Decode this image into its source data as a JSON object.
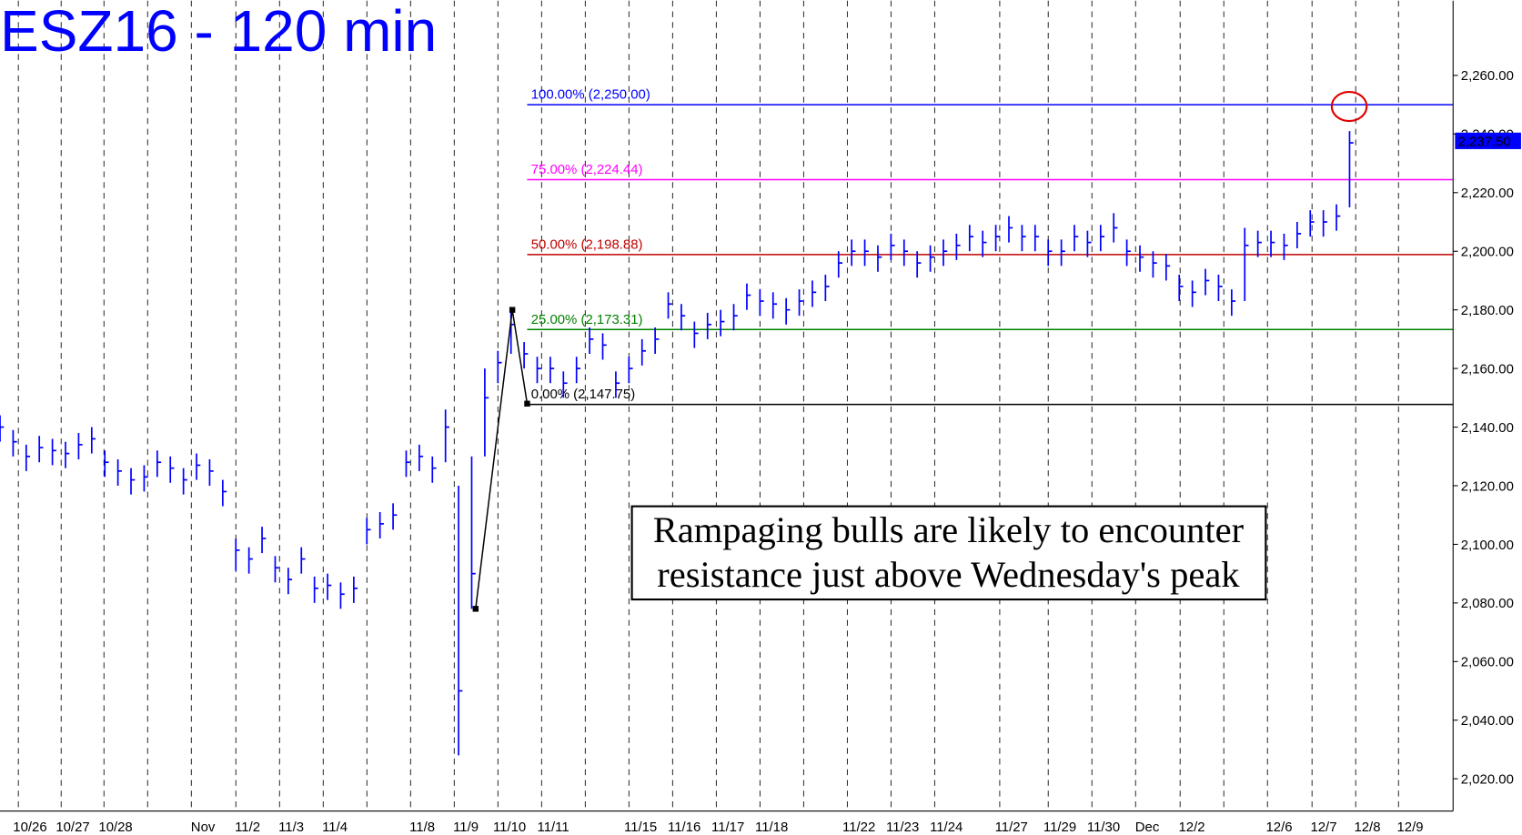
{
  "chart_data": {
    "type": "ohlc",
    "title": "ESZ16 - 120 min",
    "color": "#0000ff",
    "annotation": [
      "Rampaging bulls are likely to encounter",
      "resistance just above Wednesday's peak"
    ],
    "x": [
      0,
      3,
      6,
      9,
      12,
      15,
      18,
      21,
      24,
      27,
      30,
      33,
      36,
      39,
      42,
      45,
      48,
      51,
      54,
      57,
      60,
      63,
      66,
      69,
      72,
      75,
      78,
      81,
      84,
      87,
      90,
      93,
      96,
      99,
      102,
      105,
      108,
      111,
      114,
      117,
      120,
      123,
      126,
      129,
      132,
      135,
      138,
      141,
      144,
      147,
      150,
      153,
      156,
      159,
      162,
      165,
      168,
      171,
      174,
      177,
      180,
      183,
      186,
      189,
      192,
      195,
      198,
      201,
      204,
      207,
      210,
      213,
      216,
      219,
      222,
      225,
      228,
      231,
      234,
      237,
      240,
      243,
      246,
      249,
      252,
      255,
      258,
      261,
      264,
      267,
      270,
      273,
      276,
      279,
      282,
      285,
      288,
      291,
      294,
      297,
      300,
      303,
      306,
      309
    ],
    "high": [
      2144,
      2139,
      2134,
      2137,
      2136,
      2135,
      2138,
      2140,
      2132,
      2129,
      2126,
      2127,
      2132,
      2130,
      2126,
      2131,
      2129,
      2122,
      2102,
      2099,
      2106,
      2096,
      2092,
      2099,
      2089,
      2090,
      2087,
      2089,
      2109,
      2111,
      2114,
      2132,
      2134,
      2130,
      2146,
      2120,
      2130,
      2160,
      2166,
      2181,
      2169,
      2164,
      2164,
      2159,
      2164,
      2174,
      2172,
      2159,
      2164,
      2170,
      2174,
      2186,
      2182,
      2176,
      2179,
      2180,
      2182,
      2189,
      2187,
      2186,
      2184,
      2187,
      2190,
      2192,
      2200,
      2204,
      2204,
      2202,
      2206,
      2204,
      2200,
      2202,
      2204,
      2206,
      2209,
      2207,
      2209,
      2212,
      2209,
      2209,
      2204,
      2204,
      2209,
      2207,
      2209,
      2213,
      2204,
      2202,
      2200,
      2199,
      2192,
      2190,
      2194,
      2192,
      2187,
      2208,
      2207,
      2207,
      2206,
      2210,
      2214,
      2214,
      2216,
      2241
    ],
    "low": [
      2135,
      2130,
      2125,
      2128,
      2127,
      2126,
      2129,
      2131,
      2123,
      2120,
      2117,
      2118,
      2123,
      2121,
      2117,
      2122,
      2120,
      2113,
      2091,
      2090,
      2097,
      2087,
      2083,
      2090,
      2080,
      2081,
      2078,
      2080,
      2100,
      2102,
      2105,
      2123,
      2125,
      2121,
      2128,
      2028,
      2078,
      2130,
      2155,
      2165,
      2160,
      2155,
      2155,
      2150,
      2155,
      2165,
      2163,
      2150,
      2155,
      2161,
      2165,
      2177,
      2173,
      2167,
      2170,
      2171,
      2173,
      2180,
      2178,
      2177,
      2175,
      2178,
      2181,
      2183,
      2191,
      2195,
      2195,
      2193,
      2197,
      2195,
      2191,
      2193,
      2195,
      2197,
      2200,
      2198,
      2200,
      2203,
      2200,
      2200,
      2195,
      2195,
      2200,
      2198,
      2200,
      2203,
      2195,
      2193,
      2191,
      2190,
      2183,
      2181,
      2185,
      2183,
      2178,
      2183,
      2198,
      2198,
      2197,
      2201,
      2205,
      2205,
      2207,
      2215
    ],
    "close": [
      2140,
      2135,
      2130,
      2133,
      2132,
      2131,
      2134,
      2136,
      2128,
      2125,
      2122,
      2123,
      2128,
      2126,
      2122,
      2127,
      2125,
      2118,
      2098,
      2095,
      2102,
      2092,
      2088,
      2095,
      2085,
      2086,
      2083,
      2085,
      2105,
      2107,
      2110,
      2128,
      2130,
      2126,
      2140,
      2050,
      2090,
      2150,
      2162,
      2175,
      2165,
      2160,
      2160,
      2155,
      2160,
      2170,
      2168,
      2155,
      2160,
      2166,
      2170,
      2182,
      2178,
      2172,
      2175,
      2176,
      2178,
      2185,
      2183,
      2182,
      2180,
      2183,
      2186,
      2188,
      2196,
      2200,
      2200,
      2198,
      2202,
      2200,
      2196,
      2198,
      2200,
      2202,
      2205,
      2203,
      2205,
      2208,
      2205,
      2205,
      2200,
      2200,
      2205,
      2203,
      2205,
      2208,
      2200,
      2198,
      2196,
      2195,
      2188,
      2186,
      2190,
      2188,
      2183,
      2202,
      2203,
      2203,
      2202,
      2206,
      2210,
      2210,
      2212,
      2237
    ],
    "xlim": [
      0,
      332.7
    ],
    "ylim": [
      2009,
      2285.5
    ],
    "yticks": [
      {
        "value": 2020,
        "label": "2,020.00"
      },
      {
        "value": 2040,
        "label": "2,040.00"
      },
      {
        "value": 2060,
        "label": "2,060.00"
      },
      {
        "value": 2080,
        "label": "2,080.00"
      },
      {
        "value": 2100,
        "label": "2,100.00"
      },
      {
        "value": 2120,
        "label": "2,120.00"
      },
      {
        "value": 2140,
        "label": "2,140.00"
      },
      {
        "value": 2160,
        "label": "2,160.00"
      },
      {
        "value": 2180,
        "label": "2,180.00"
      },
      {
        "value": 2200,
        "label": "2,200.00"
      },
      {
        "value": 2220,
        "label": "2,220.00"
      },
      {
        "value": 2240,
        "label": "2,240.00"
      },
      {
        "value": 2260,
        "label": "2,260.00"
      }
    ],
    "xticks": [
      {
        "value": 4.2,
        "label": "10/26"
      },
      {
        "value": 14,
        "label": "10/27"
      },
      {
        "value": 23.8,
        "label": "10/28"
      },
      {
        "value": 43.8,
        "label": "Nov"
      },
      {
        "value": 54,
        "label": "11/2"
      },
      {
        "value": 64,
        "label": "11/3"
      },
      {
        "value": 74,
        "label": "11/4"
      },
      {
        "value": 94,
        "label": "11/8"
      },
      {
        "value": 104,
        "label": "11/9"
      },
      {
        "value": 114,
        "label": "11/10"
      },
      {
        "value": 124,
        "label": "11/11"
      },
      {
        "value": 144,
        "label": "11/15"
      },
      {
        "value": 154,
        "label": "11/16"
      },
      {
        "value": 164,
        "label": "11/17"
      },
      {
        "value": 174,
        "label": "11/18"
      },
      {
        "value": 194,
        "label": "11/22"
      },
      {
        "value": 204,
        "label": "11/23"
      },
      {
        "value": 214,
        "label": "11/24"
      },
      {
        "value": 228.9,
        "label": "11/27"
      },
      {
        "value": 240,
        "label": "11/29"
      },
      {
        "value": 250,
        "label": "11/30"
      },
      {
        "value": 260,
        "label": "Dec"
      },
      {
        "value": 270.2,
        "label": "12/2"
      },
      {
        "value": 290.2,
        "label": "12/6"
      },
      {
        "value": 300.4,
        "label": "12/7"
      },
      {
        "value": 310.4,
        "label": "12/8"
      },
      {
        "value": 320.2,
        "label": "12/9"
      }
    ],
    "minor_xticks": [
      33.8,
      84,
      134,
      184,
      280.2
    ],
    "fib_start": 120.7,
    "fib_levels": [
      {
        "value": 2250,
        "label": "100.00% (2,250.00)",
        "color": "#0000ff"
      },
      {
        "value": 2224.44,
        "label": "75.00% (2,224.44)",
        "color": "#ff00ff"
      },
      {
        "value": 2198.88,
        "label": "50.00% (2,198.88)",
        "color": "#c00000"
      },
      {
        "value": 2173.31,
        "label": "25.00% (2,173.31)",
        "color": "#008000"
      },
      {
        "value": 2147.75,
        "label": "0.00% (2,147.75)",
        "color": "#000000"
      }
    ],
    "swing": {
      "x": [
        108.9,
        117.3,
        120.7
      ],
      "y": [
        2078,
        2180,
        2148
      ]
    },
    "last_price": {
      "value": 2237.5,
      "label": "2,237.50"
    }
  }
}
